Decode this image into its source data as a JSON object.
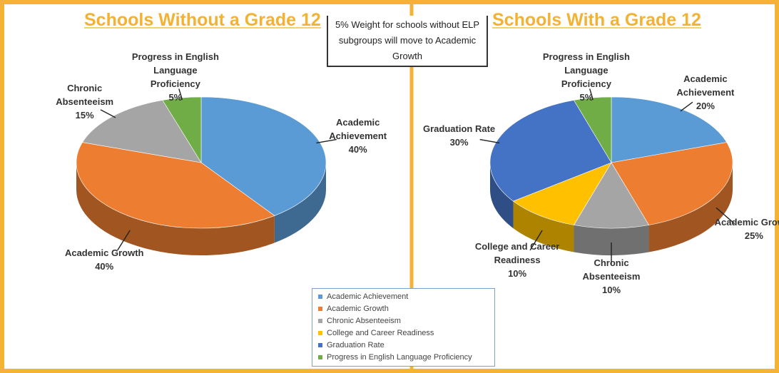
{
  "textbox": "5% Weight for schools without ELP subgroups will move to Academic Growth",
  "chart_data": [
    {
      "type": "pie",
      "title": "Schools Without a Grade 12",
      "categories": [
        "Academic Achievement",
        "Academic Growth",
        "Chronic Absenteeism",
        "Progress in English Language Proficiency"
      ],
      "values": [
        40,
        40,
        15,
        5
      ],
      "value_labels": [
        "40%",
        "40%",
        "15%",
        "5%"
      ],
      "colors": [
        "#5b9bd5",
        "#ed7d31",
        "#a5a5a5",
        "#70ad47"
      ]
    },
    {
      "type": "pie",
      "title": "Schools With a Grade 12",
      "categories": [
        "Academic Achievement",
        "Academic Growth",
        "Chronic Absenteeism",
        "College and Career Readiness",
        "Graduation Rate",
        "Progress in English Language Proficiency"
      ],
      "values": [
        20,
        25,
        10,
        10,
        30,
        5
      ],
      "value_labels": [
        "20%",
        "25%",
        "10%",
        "10%",
        "30%",
        "5%"
      ],
      "colors": [
        "#5b9bd5",
        "#ed7d31",
        "#a5a5a5",
        "#ffc000",
        "#4472c4",
        "#70ad47"
      ],
      "legend": true
    }
  ]
}
